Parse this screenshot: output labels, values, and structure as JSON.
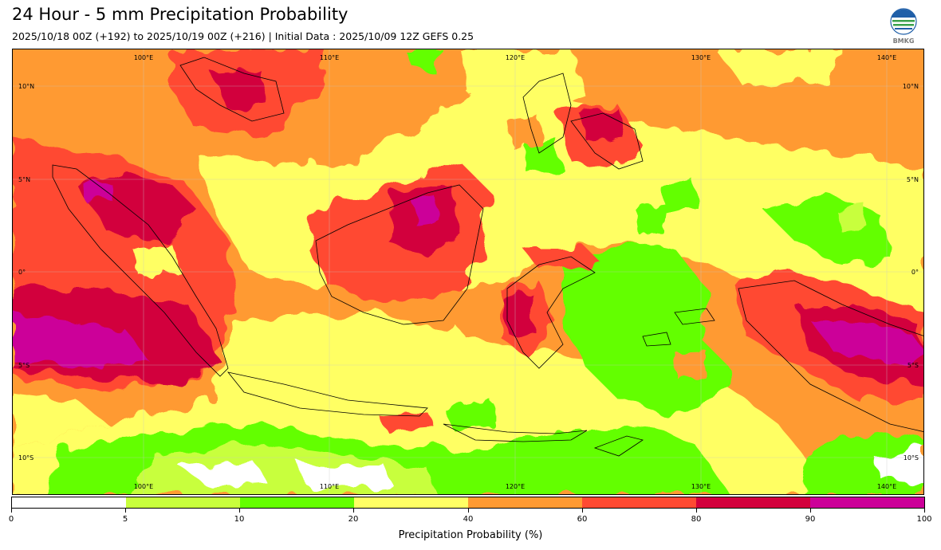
{
  "title": "24 Hour - 5 mm Precipitation Probability",
  "subtitle": "2025/10/18 00Z (+192) to 2025/10/19 00Z (+216) | Initial Data : 2025/10/09 12Z GEFS 0.25",
  "logo_text": "BMKG",
  "map": {
    "longitude_labels_top": [
      "100°E",
      "110°E",
      "120°E",
      "130°E",
      "140°E"
    ],
    "longitude_labels_bottom": [
      "100°E",
      "110°E",
      "120°E",
      "130°E",
      "140°E"
    ],
    "latitude_labels_left": [
      "10°N",
      "5°N",
      "0°",
      "5°S",
      "10°S"
    ],
    "latitude_labels_right": [
      "10°N",
      "5°N",
      "0°",
      "5°S",
      "10°S"
    ]
  },
  "colorbar": {
    "levels": [
      0,
      5,
      10,
      20,
      40,
      60,
      80,
      90,
      100
    ],
    "tick_labels": [
      "0",
      "5",
      "10",
      "20",
      "40",
      "60",
      "80",
      "90",
      "100"
    ],
    "colors": [
      "#ffffff",
      "#c8ff3c",
      "#64ff00",
      "#ffff64",
      "#ff9a32",
      "#ff4a32",
      "#d2003c",
      "#cc0099"
    ],
    "label": "Precipitation Probability (%)"
  }
}
